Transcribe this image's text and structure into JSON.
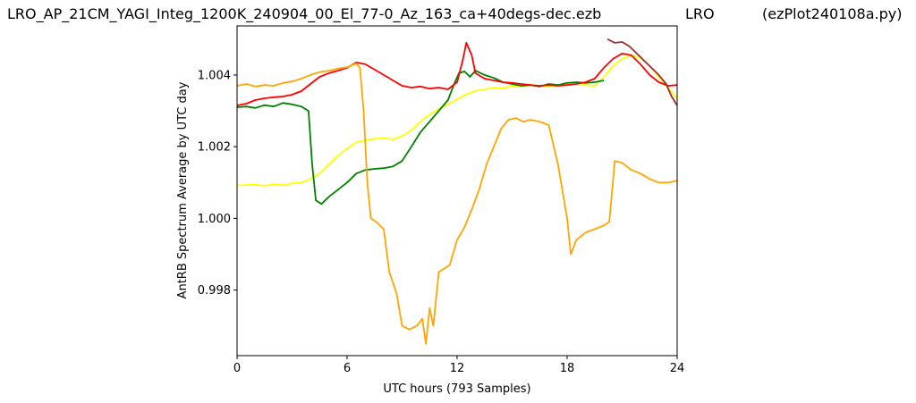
{
  "header": {
    "left": "LRO_AP_21CM_YAGI_Integ_1200K_240904_00_El_77-0_Az_163_ca+40degs-dec.ezb",
    "middle": "LRO",
    "right": "(ezPlot240108a.py)"
  },
  "chart_data": {
    "type": "line",
    "title": "",
    "xlabel": "UTC hours  (793 Samples)",
    "ylabel": "AntRB Spectrum Average by UTC day",
    "xlim": [
      0,
      24
    ],
    "ylim": [
      0.99617,
      1.00537
    ],
    "xticks": [
      0,
      6,
      12,
      18,
      24
    ],
    "xtick_labels": [
      "0",
      "6",
      "12",
      "18",
      "24"
    ],
    "yticks": [
      0.998,
      1.0,
      1.002,
      1.004
    ],
    "ytick_labels": [
      "0.998",
      "1.000",
      "1.002",
      "1.004"
    ],
    "grid": false,
    "legend": "none",
    "series": [
      {
        "color": "#ffff00",
        "x": [
          0,
          0.5,
          1,
          1.5,
          2,
          2.5,
          3,
          3.5,
          4,
          4.5,
          5,
          5.5,
          6,
          6.5,
          7,
          7.5,
          8,
          8.5,
          9,
          9.5,
          10,
          10.5,
          11,
          11.5,
          12,
          12.5,
          13,
          13.5,
          14,
          14.5,
          15,
          15.5,
          16,
          16.5,
          17,
          17.5,
          18,
          18.5,
          19,
          19.5,
          20,
          20.5,
          21,
          21.5,
          22,
          22.5,
          23,
          23.5,
          24
        ],
        "y": [
          1.00092,
          1.00093,
          1.00094,
          1.00091,
          1.00095,
          1.00092,
          1.00098,
          1.001,
          1.0011,
          1.00125,
          1.0015,
          1.00175,
          1.00195,
          1.00212,
          1.00218,
          1.00222,
          1.00225,
          1.0022,
          1.0023,
          1.00245,
          1.0027,
          1.0029,
          1.00305,
          1.00318,
          1.00332,
          1.00346,
          1.00356,
          1.0036,
          1.00365,
          1.00363,
          1.0037,
          1.00368,
          1.00372,
          1.0037,
          1.00368,
          1.00372,
          1.00375,
          1.00378,
          1.00372,
          1.0037,
          1.00395,
          1.00425,
          1.00445,
          1.00455,
          1.00448,
          1.00425,
          1.00395,
          1.00365,
          1.00335
        ]
      },
      {
        "color": "#008000",
        "x": [
          0,
          0.5,
          1,
          1.5,
          2,
          2.5,
          3,
          3.5,
          3.9,
          4.1,
          4.3,
          4.6,
          5,
          5.5,
          6,
          6.5,
          7,
          7.5,
          8,
          8.5,
          9,
          9.5,
          10,
          10.5,
          11,
          11.5,
          11.8,
          12.1,
          12.4,
          12.7,
          13,
          13.5,
          14,
          14.5,
          15,
          15.5,
          16,
          16.5,
          17,
          17.5,
          18,
          18.5,
          19,
          19.5,
          20
        ],
        "y": [
          1.0031,
          1.00312,
          1.00308,
          1.00316,
          1.00312,
          1.00322,
          1.00318,
          1.00312,
          1.003,
          1.0015,
          1.0005,
          1.0004,
          1.0006,
          1.0008,
          1.001,
          1.00125,
          1.00135,
          1.00138,
          1.0014,
          1.00145,
          1.0016,
          1.002,
          1.0024,
          1.0027,
          1.003,
          1.0033,
          1.0037,
          1.00405,
          1.0041,
          1.00395,
          1.00412,
          1.004,
          1.00392,
          1.0038,
          1.00375,
          1.0037,
          1.00372,
          1.00368,
          1.00375,
          1.00372,
          1.00378,
          1.0038,
          1.00378,
          1.0038,
          1.00385
        ]
      },
      {
        "color": "#ff0000",
        "x": [
          0,
          0.5,
          1,
          1.5,
          2,
          2.5,
          3,
          3.5,
          4,
          4.5,
          5,
          5.5,
          6,
          6.5,
          7,
          7.5,
          8,
          8.5,
          9,
          9.5,
          10,
          10.5,
          11,
          11.5,
          12,
          12.3,
          12.5,
          12.8,
          13,
          13.5,
          14,
          14.5,
          15,
          15.5,
          16,
          16.5,
          17,
          17.5,
          18,
          18.5,
          19,
          19.5,
          20,
          20.5,
          21,
          21.5,
          22,
          22.5,
          23,
          23.5,
          24
        ],
        "y": [
          1.00315,
          1.0032,
          1.0033,
          1.00335,
          1.00338,
          1.0034,
          1.00345,
          1.00355,
          1.00375,
          1.00395,
          1.00405,
          1.00412,
          1.0042,
          1.00435,
          1.0043,
          1.00415,
          1.004,
          1.00385,
          1.0037,
          1.00365,
          1.00368,
          1.00362,
          1.00365,
          1.0036,
          1.0038,
          1.0044,
          1.0049,
          1.00455,
          1.00405,
          1.0039,
          1.00385,
          1.0038,
          1.00378,
          1.00375,
          1.00372,
          1.0037,
          1.00372,
          1.0037,
          1.00372,
          1.00375,
          1.0038,
          1.0039,
          1.0042,
          1.00445,
          1.0046,
          1.00455,
          1.0043,
          1.004,
          1.0038,
          1.0037,
          1.00372
        ]
      },
      {
        "color": "#ffa500",
        "x": [
          0,
          0.5,
          1,
          1.5,
          2,
          2.5,
          3,
          3.5,
          4,
          4.5,
          5,
          5.5,
          6,
          6.5,
          6.7,
          6.9,
          7.1,
          7.3,
          7.6,
          8,
          8.3,
          8.7,
          9,
          9.4,
          9.8,
          10.1,
          10.3,
          10.5,
          10.7,
          11,
          11.3,
          11.6,
          12,
          12.4,
          12.8,
          13.2,
          13.6,
          14,
          14.4,
          14.8,
          15.2,
          15.6,
          16,
          16.5,
          17,
          17.5,
          18,
          18.2,
          18.5,
          19,
          19.5,
          20,
          20.3,
          20.6,
          21,
          21.5,
          22,
          22.5,
          23,
          23.5,
          24
        ],
        "y": [
          1.0037,
          1.00375,
          1.00368,
          1.00372,
          1.0037,
          1.00378,
          1.00382,
          1.0039,
          1.004,
          1.00408,
          1.00412,
          1.00418,
          1.00422,
          1.00432,
          1.0042,
          1.003,
          1.001,
          1.0,
          0.9999,
          0.9997,
          0.9985,
          0.9979,
          0.997,
          0.9969,
          0.997,
          0.9972,
          0.9965,
          0.9975,
          0.997,
          0.9985,
          0.9986,
          0.9987,
          0.9994,
          0.99975,
          1.00025,
          1.0008,
          1.0015,
          1.002,
          1.0025,
          1.00275,
          1.0028,
          1.0027,
          1.00275,
          1.0027,
          1.0026,
          1.0015,
          1.0,
          0.999,
          0.9994,
          0.9996,
          0.9997,
          0.9998,
          0.9999,
          1.0016,
          1.00155,
          1.00135,
          1.00125,
          1.0011,
          1.001,
          1.001,
          1.00105
        ]
      },
      {
        "color": "#a52a2a",
        "x": [
          20.2,
          20.6,
          21,
          21.4,
          21.8,
          22.2,
          22.6,
          23,
          23.4,
          23.7,
          24
        ],
        "y": [
          1.005,
          1.0049,
          1.00492,
          1.0048,
          1.0046,
          1.0044,
          1.0042,
          1.004,
          1.00375,
          1.0034,
          1.00315
        ]
      }
    ]
  }
}
